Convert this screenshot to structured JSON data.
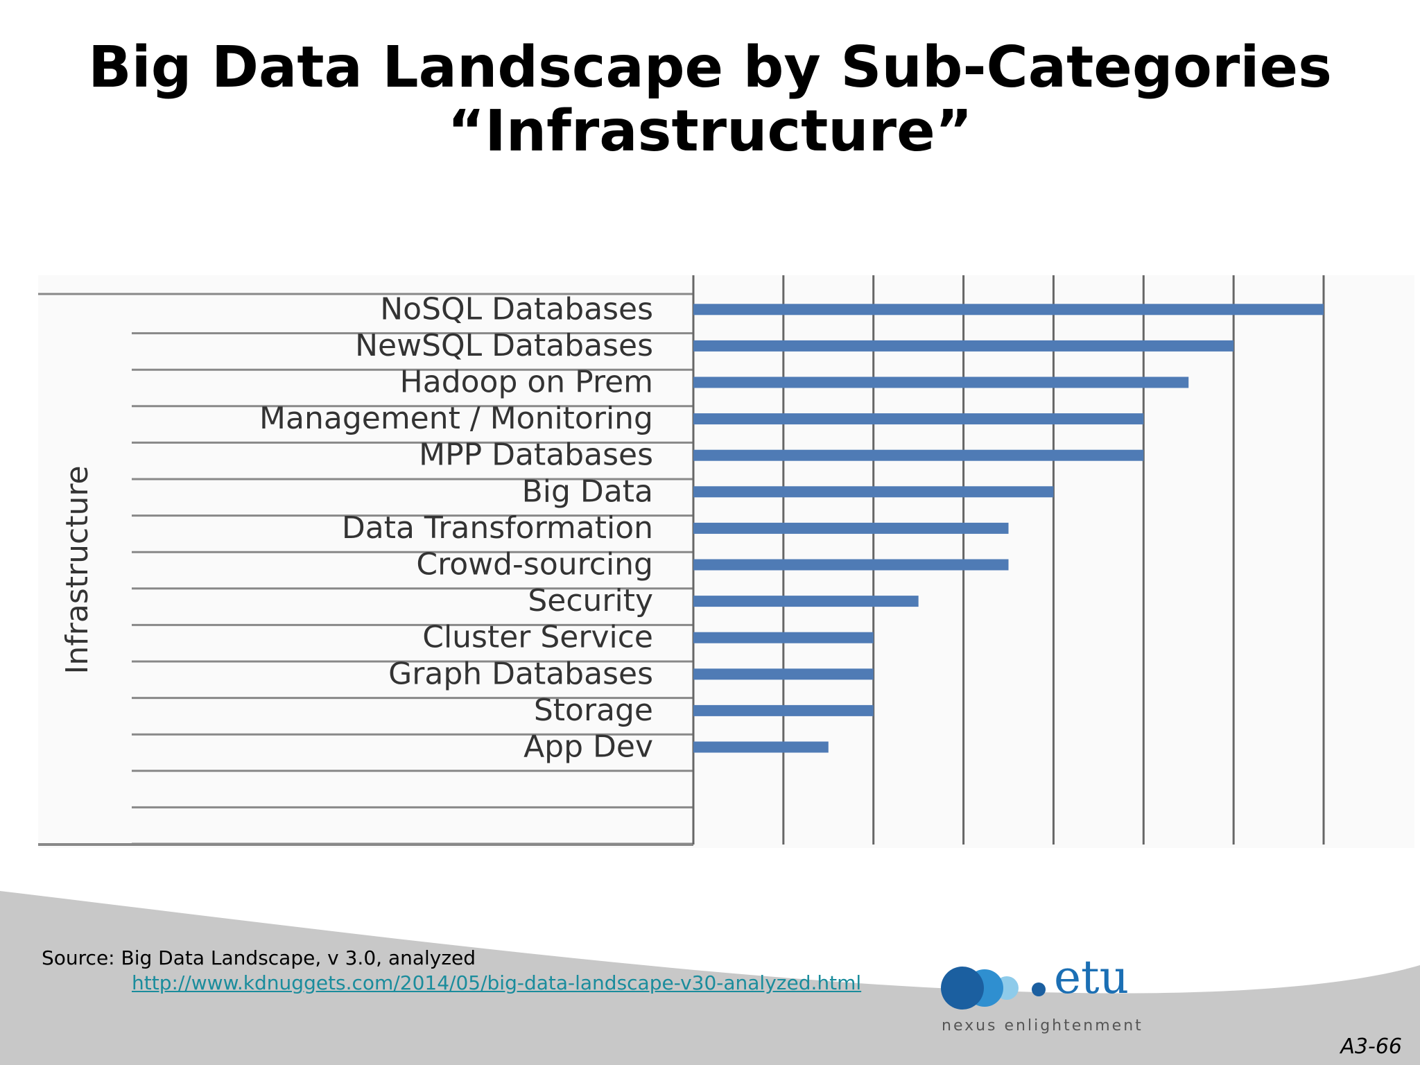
{
  "slide": {
    "title_line1": "Big Data Landscape by Sub-Categories",
    "title_line2": "“Infrastructure”",
    "source_text": "Source: Big Data Landscape, v 3.0, analyzed",
    "source_link": "http://www.kdnuggets.com/2014/05/big-data-landscape-v30-analyzed.html",
    "logo_word": "etu",
    "logo_tagline": "nexus enlightenment",
    "page_number": "A3-66"
  },
  "colors": {
    "bar": "#4f7bb5",
    "grid": "#666666",
    "row_line": "#888888",
    "footer_swoosh": "#c8c8c8",
    "logo_dark": "#1b5fa0",
    "logo_mid": "#2f8fd0",
    "logo_light": "#8ecbea"
  },
  "chart_data": {
    "type": "bar",
    "orientation": "horizontal",
    "title": "",
    "ylabel": "Infrastructure",
    "xlabel": "",
    "categories": [
      "NoSQL Databases",
      "NewSQL Databases",
      "Hadoop on Prem",
      "Management / Monitoring",
      "MPP Databases",
      "Big Data",
      "Data Transformation",
      "Crowd-sourcing",
      "Security",
      "Cluster Service",
      "Graph Databases",
      "Storage",
      "App Dev"
    ],
    "values": [
      14,
      12,
      11,
      10,
      10,
      8,
      7,
      7,
      5,
      4,
      4,
      4,
      3
    ],
    "xlim": [
      0,
      14
    ],
    "gridlines": [
      2,
      4,
      6,
      8,
      10,
      12,
      14
    ],
    "grid": true,
    "legend": "none",
    "tick_labels_shown": false
  }
}
